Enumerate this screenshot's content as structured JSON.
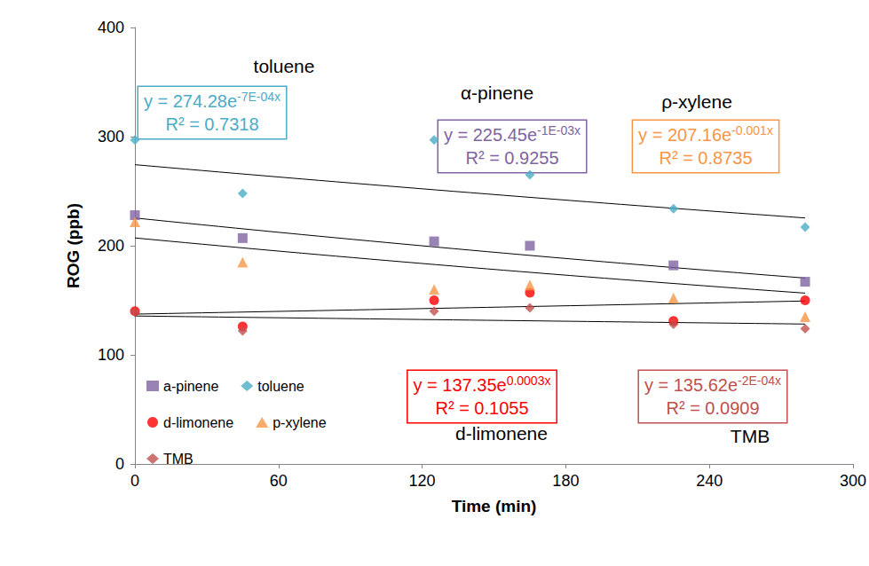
{
  "chart_data": {
    "type": "scatter",
    "x_label": "Time (min)",
    "y_label": "ROG (ppb)",
    "xlim": [
      0,
      300
    ],
    "xticks": [
      0,
      60,
      120,
      180,
      240,
      300
    ],
    "ylim": [
      0,
      400
    ],
    "yticks": [
      0,
      100,
      200,
      300,
      400
    ],
    "grid": false,
    "legend": "bottom-left",
    "x": [
      0,
      45,
      125,
      165,
      225,
      280
    ],
    "series": [
      {
        "name": "a-pinene",
        "color": "#8064a2",
        "marker": "square",
        "values": [
          228,
          207,
          204,
          200,
          182,
          167
        ],
        "trendline": {
          "a": 225.45,
          "b": -0.001
        },
        "annotation": {
          "title": "α-pinene",
          "equation": [
            "y = 225.45e",
            "-1E-03x"
          ],
          "r2": "R² = 0.9255"
        }
      },
      {
        "name": "toluene",
        "color": "#4bacc6",
        "marker": "diamond",
        "values": [
          297,
          248,
          297,
          265,
          234,
          217
        ],
        "trendline": {
          "a": 274.28,
          "b": -0.0007
        },
        "annotation": {
          "title": "toluene",
          "equation": [
            "y = 274.28e",
            "-7E-04x"
          ],
          "r2": "R² = 0.7318"
        }
      },
      {
        "name": "d-limonene",
        "color": "#ff0000",
        "marker": "circle",
        "values": [
          140,
          126,
          150,
          157,
          131,
          150
        ],
        "trendline": {
          "a": 137.35,
          "b": 0.0003
        },
        "annotation": {
          "title": "d-limonene",
          "equation": [
            "y = 137.35e",
            "0.0003x"
          ],
          "r2": "R² = 0.1055"
        }
      },
      {
        "name": "p-xylene",
        "color": "#f79646",
        "marker": "triangle",
        "values": [
          222,
          185,
          160,
          164,
          152,
          135
        ],
        "trendline": {
          "a": 207.16,
          "b": -0.001
        },
        "annotation": {
          "title": "ρ-xylene",
          "equation": [
            "y = 207.16e",
            "-0.001x"
          ],
          "r2": "R² = 0.8735"
        }
      },
      {
        "name": "TMB",
        "color": "#c0504d",
        "marker": "diamond",
        "values": [
          139,
          122,
          140,
          143,
          128,
          124
        ],
        "trendline": {
          "a": 135.62,
          "b": -0.0002
        },
        "annotation": {
          "title": "TMB",
          "equation": [
            "y = 135.62e",
            "-2E-04x"
          ],
          "r2": "R² = 0.0909"
        }
      }
    ]
  }
}
